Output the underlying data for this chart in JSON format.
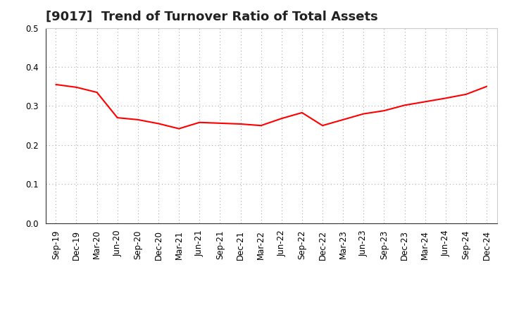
{
  "title": "[9017]  Trend of Turnover Ratio of Total Assets",
  "x_labels": [
    "Sep-19",
    "Dec-19",
    "Mar-20",
    "Jun-20",
    "Sep-20",
    "Dec-20",
    "Mar-21",
    "Jun-21",
    "Sep-21",
    "Dec-21",
    "Mar-22",
    "Jun-22",
    "Sep-22",
    "Dec-22",
    "Mar-23",
    "Jun-23",
    "Sep-23",
    "Dec-23",
    "Mar-24",
    "Jun-24",
    "Sep-24",
    "Dec-24"
  ],
  "y_values": [
    0.355,
    0.348,
    0.335,
    0.27,
    0.265,
    0.255,
    0.242,
    0.258,
    0.256,
    0.254,
    0.25,
    0.268,
    0.283,
    0.25,
    0.265,
    0.28,
    0.288,
    0.302,
    0.311,
    0.32,
    0.33,
    0.35
  ],
  "line_color": "#FF0000",
  "line_width": 1.5,
  "ylim": [
    0.0,
    0.5
  ],
  "yticks": [
    0.0,
    0.1,
    0.2,
    0.3,
    0.4,
    0.5
  ],
  "grid_color": "#aaaaaa",
  "background_color": "#ffffff",
  "title_fontsize": 13,
  "tick_fontsize": 8.5
}
